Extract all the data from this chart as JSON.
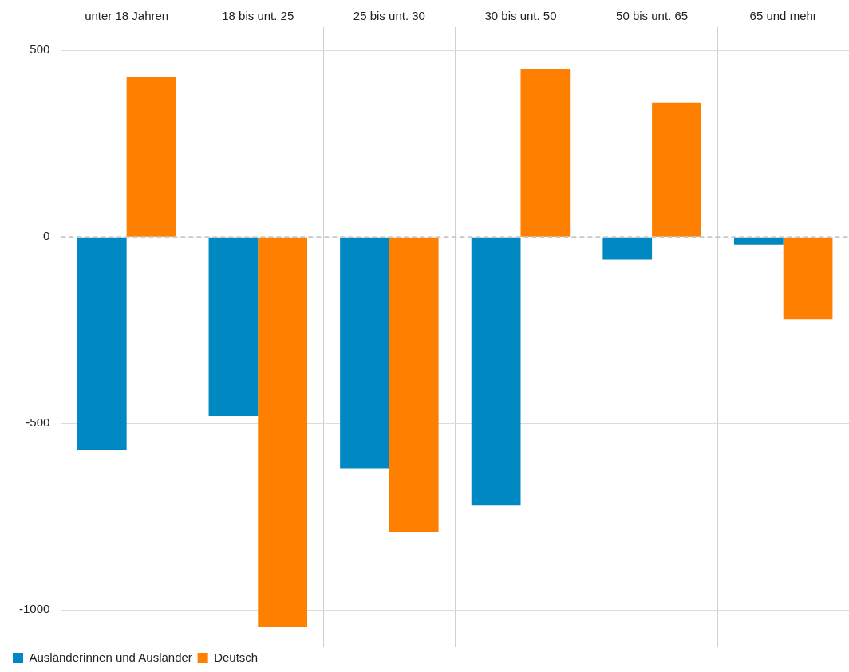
{
  "chart_data": {
    "type": "bar",
    "categories": [
      "unter 18 Jahren",
      "18 bis unt. 25",
      "25 bis unt. 30",
      "30 bis unt. 50",
      "50 bis unt. 65",
      "65 und mehr"
    ],
    "series": [
      {
        "name": "Ausländerinnen und Ausländer",
        "color": "#0088c2",
        "values": [
          -570,
          -480,
          -620,
          -720,
          -60,
          -20
        ]
      },
      {
        "name": "Deutsch",
        "color": "#ff8000",
        "values": [
          430,
          -1045,
          -790,
          450,
          360,
          -220
        ]
      }
    ],
    "ylim": [
      -1100,
      520
    ],
    "yticks": [
      -1000,
      -500,
      0,
      500
    ],
    "ref_lines": [
      {
        "axis": "y",
        "value": 0,
        "color": "#c8c8c8",
        "line_style": "dashed"
      }
    ],
    "grid": true,
    "legend": "bottom left"
  }
}
